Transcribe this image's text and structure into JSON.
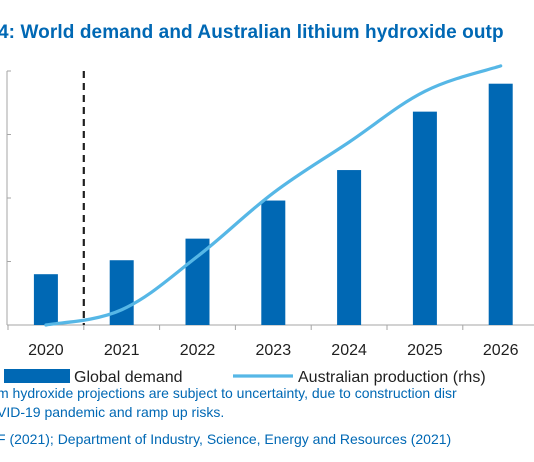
{
  "title": "4: World demand and Australian lithium hydroxide outp",
  "chart_data": {
    "type": "bar",
    "title": "4: World demand and Australian lithium hydroxide outp",
    "categories": [
      "2020",
      "2021",
      "2022",
      "2023",
      "2024",
      "2025",
      "2026"
    ],
    "xlabel": "",
    "ylabel": "",
    "ylim": [
      0,
      100
    ],
    "grid": false,
    "legend_position": "bottom",
    "series": [
      {
        "name": "Global demand",
        "type": "bar",
        "axis": "left",
        "color": "#0068b4",
        "values": [
          20,
          25.5,
          34,
          49,
          61,
          84,
          95
        ]
      },
      {
        "name": "Australian production (rhs)",
        "type": "line",
        "axis": "right",
        "color": "#56b7e6",
        "values": [
          0,
          6,
          27,
          52,
          72,
          92,
          102
        ]
      }
    ],
    "forecast_divider_after": "2020"
  },
  "notes": [
    "m hydroxide projections are subject to uncertainty, due to construction disr",
    "VID-19 pandemic and ramp up risks."
  ],
  "source": "F (2021); Department of Industry, Science, Energy and Resources (2021)"
}
